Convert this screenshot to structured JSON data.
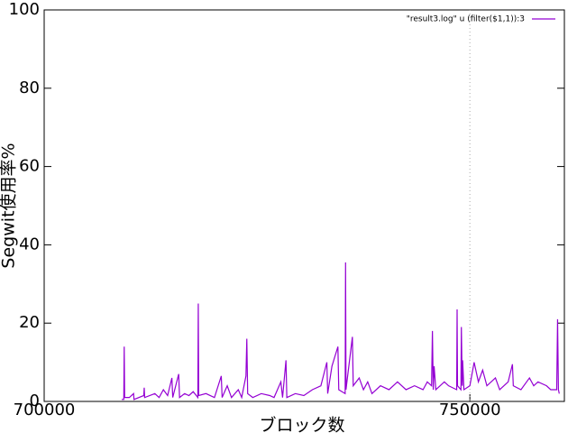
{
  "chart_data": {
    "type": "line",
    "x_label": "ブロック数",
    "y_label": "Segwit使用率%",
    "xlim": [
      700000,
      761100
    ],
    "ylim": [
      0,
      100
    ],
    "xticks": [
      700000,
      750000
    ],
    "yticks": [
      0,
      20,
      40,
      60,
      80,
      100
    ],
    "grid": true,
    "legend": "top-right",
    "x": [
      709100,
      709350,
      709400,
      709450,
      710000,
      710500,
      710550,
      711700,
      711750,
      711800,
      713000,
      713500,
      714000,
      714500,
      715000,
      715100,
      715800,
      715900,
      716500,
      717000,
      717500,
      718050,
      718100,
      718150,
      719000,
      720000,
      720800,
      720900,
      721500,
      722000,
      722800,
      723200,
      723700,
      723800,
      723900,
      724500,
      725500,
      726500,
      727000,
      727800,
      728000,
      728400,
      728500,
      729500,
      730500,
      731500,
      732500,
      733200,
      733300,
      733800,
      734500,
      734600,
      735350,
      735400,
      735450,
      736200,
      736300,
      737000,
      737500,
      738000,
      738500,
      739500,
      740500,
      741500,
      742500,
      743500,
      744500,
      745000,
      745500,
      745600,
      745700,
      745800,
      746000,
      746500,
      747000,
      747500,
      748450,
      748500,
      748550,
      748950,
      749000,
      749100,
      749150,
      749300,
      750000,
      750500,
      751000,
      751500,
      752000,
      753000,
      753500,
      754500,
      755000,
      755100,
      756000,
      757000,
      757500,
      758000,
      759000,
      759500,
      760200,
      760300,
      760400,
      760500
    ],
    "series": [
      {
        "name": "\"result3.log\" u (filter($1,1)):3",
        "color": "#9400d3",
        "values": [
          0.5,
          0.5,
          14,
          1,
          1,
          2,
          0.5,
          1.5,
          3.5,
          1,
          2,
          1,
          3,
          1.5,
          6,
          1,
          7,
          1,
          2,
          1.5,
          2.5,
          1,
          25,
          1.5,
          2,
          1,
          6.5,
          1,
          4,
          1,
          3,
          1,
          6.5,
          16,
          2,
          1,
          2,
          1.5,
          1,
          5,
          1,
          10.5,
          1,
          2,
          1.5,
          3,
          4,
          10,
          2,
          9,
          14,
          3,
          2,
          35.5,
          3,
          16.5,
          4,
          6,
          3,
          5,
          2,
          4,
          3,
          5,
          3,
          4,
          3,
          5,
          4,
          18,
          3,
          9,
          3,
          4,
          5,
          4,
          3,
          23.5,
          4,
          3,
          19,
          4,
          10.5,
          3,
          4,
          10,
          5,
          8,
          4,
          6,
          3,
          5,
          9.5,
          4,
          3,
          6,
          4,
          5,
          4,
          3,
          3,
          21,
          3,
          2
        ]
      }
    ]
  }
}
